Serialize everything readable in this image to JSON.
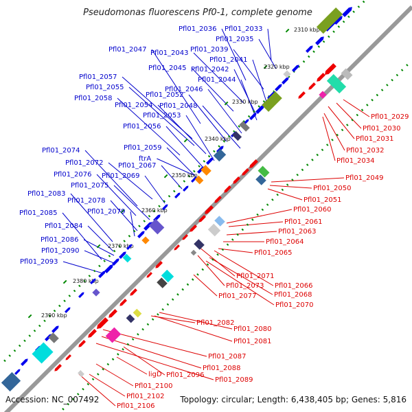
{
  "title": "Pseudomonas fluorescens Pf0-1, complete genome",
  "footer": {
    "accession": "Accession: NC_007492",
    "topology": "Topology: circular; Length: 6,438,405 bp; Genes: 5,816"
  },
  "colors": {
    "backbone": "#999999",
    "forward_label": "#0000cc",
    "reverse_label": "#dd0000",
    "forward_gene": "#0000ee",
    "reverse_gene": "#ee0000",
    "tick": "#008800"
  },
  "ticks": [
    "2310 kbp",
    "2320 kbp",
    "2330 kbp",
    "2340 kbp",
    "2350 kbp",
    "2360 kbp",
    "2370 kbp",
    "2380 kbp",
    "2390 kbp"
  ],
  "forward_labels": [
    "Pfl01_2036",
    "Pfl01_2033",
    "Pfl01_2035",
    "Pfl01_2039",
    "Pfl01_2047",
    "Pfl01_2043",
    "Pfl01_2041",
    "Pfl01_2045",
    "Pfl01_2042",
    "Pfl01_2044",
    "Pfl01_2057",
    "Pfl01_2055",
    "Pfl01_2046",
    "Pfl01_2052",
    "Pfl01_2058",
    "Pfl01_2054",
    "Pfl01_2048",
    "Pfl01_2053",
    "Pfl01_2056",
    "Pfl01_2059",
    "Pfl01_2074",
    "ftrA",
    "Pfl01_2072",
    "Pfl01_2067",
    "Pfl01_2076",
    "Pfl01_2069",
    "Pfl01_2075",
    "Pfl01_2083",
    "Pfl01_2078",
    "Pfl01_2085",
    "Pfl01_2079",
    "Pfl01_2084",
    "Pfl01_2086",
    "Pfl01_2090",
    "Pfl01_2093"
  ],
  "reverse_labels": [
    "Pfl01_2029",
    "Pfl01_2030",
    "Pfl01_2031",
    "Pfl01_2032",
    "Pfl01_2034",
    "Pfl01_2049",
    "Pfl01_2050",
    "Pfl01_2051",
    "Pfl01_2060",
    "Pfl01_2061",
    "Pfl01_2063",
    "Pfl01_2064",
    "Pfl01_2065",
    "Pfl01_2071",
    "Pfl01_2066",
    "Pfl01_2073",
    "Pfl01_2068",
    "Pfl01_2077",
    "Pfl01_2070",
    "Pfl01_2082",
    "Pfl01_2080",
    "Pfl01_2081",
    "Pfl01_2087",
    "Pfl01_2088",
    "ligD",
    "Pfl01_2096",
    "Pfl01_2089",
    "Pfl01_2100",
    "Pfl01_2102",
    "Pfl01_2106"
  ]
}
